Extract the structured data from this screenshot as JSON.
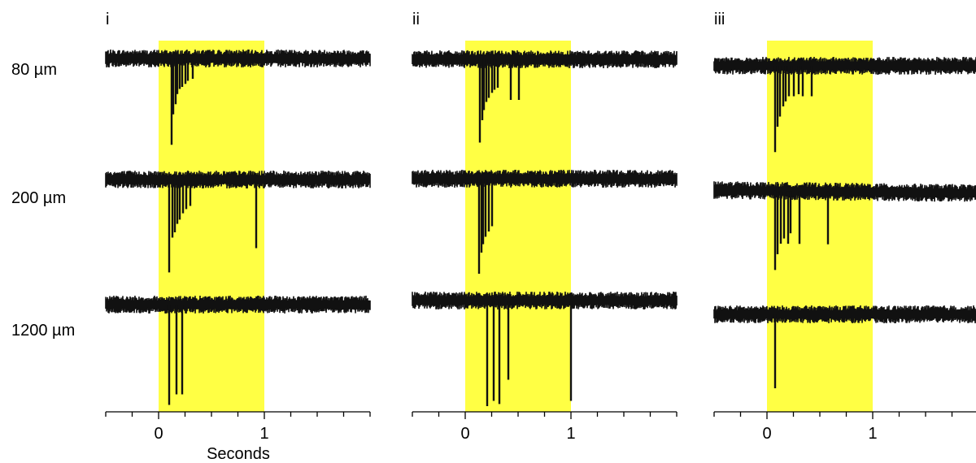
{
  "chart_data": {
    "type": "line",
    "panels": [
      {
        "label": "i",
        "traces": [
          {
            "row": "80 µm",
            "events": [
              [
                0.12,
                0.85
              ],
              [
                0.14,
                0.55
              ],
              [
                0.16,
                0.45
              ],
              [
                0.18,
                0.35
              ],
              [
                0.2,
                0.3
              ],
              [
                0.22,
                0.28
              ],
              [
                0.25,
                0.25
              ],
              [
                0.28,
                0.22
              ],
              [
                0.32,
                0.2
              ]
            ]
          },
          {
            "row": "200 µm",
            "events": [
              [
                0.1,
                0.88
              ],
              [
                0.13,
                0.55
              ],
              [
                0.15,
                0.5
              ],
              [
                0.18,
                0.42
              ],
              [
                0.2,
                0.38
              ],
              [
                0.23,
                0.32
              ],
              [
                0.26,
                0.28
              ],
              [
                0.3,
                0.25
              ],
              [
                0.92,
                0.65
              ]
            ]
          },
          {
            "row": "1200 µm",
            "events": [
              [
                0.1,
                0.95
              ],
              [
                0.17,
                0.85
              ],
              [
                0.22,
                0.85
              ]
            ]
          }
        ]
      },
      {
        "label": "ii",
        "traces": [
          {
            "row": "80 µm",
            "events": [
              [
                0.14,
                0.82
              ],
              [
                0.16,
                0.6
              ],
              [
                0.18,
                0.5
              ],
              [
                0.2,
                0.42
              ],
              [
                0.22,
                0.38
              ],
              [
                0.25,
                0.33
              ],
              [
                0.28,
                0.3
              ],
              [
                0.31,
                0.28
              ],
              [
                0.43,
                0.4
              ],
              [
                0.51,
                0.4
              ]
            ]
          },
          {
            "row": "200 µm",
            "events": [
              [
                0.13,
                0.9
              ],
              [
                0.15,
                0.7
              ],
              [
                0.17,
                0.62
              ],
              [
                0.19,
                0.55
              ],
              [
                0.22,
                0.5
              ],
              [
                0.25,
                0.45
              ]
            ]
          },
          {
            "row": "1200 µm",
            "events": [
              [
                0.21,
                1.0
              ],
              [
                0.27,
                0.95
              ],
              [
                0.32,
                0.98
              ],
              [
                0.41,
                0.75
              ],
              [
                1.0,
                0.95
              ]
            ]
          }
        ]
      },
      {
        "label": "iii",
        "traces": [
          {
            "row": "80 µm",
            "events": [
              [
                0.08,
                0.85
              ],
              [
                0.1,
                0.6
              ],
              [
                0.12,
                0.5
              ],
              [
                0.15,
                0.4
              ],
              [
                0.18,
                0.35
              ],
              [
                0.21,
                0.3
              ],
              [
                0.25,
                0.3
              ],
              [
                0.3,
                0.28
              ],
              [
                0.34,
                0.3
              ],
              [
                0.42,
                0.3
              ]
            ]
          },
          {
            "row": "200 µm",
            "events": [
              [
                0.08,
                0.75
              ],
              [
                0.1,
                0.6
              ],
              [
                0.13,
                0.5
              ],
              [
                0.16,
                0.45
              ],
              [
                0.2,
                0.5
              ],
              [
                0.22,
                0.4
              ],
              [
                0.31,
                0.5
              ],
              [
                0.58,
                0.5
              ]
            ]
          },
          {
            "row": "1200 µm",
            "events": [
              [
                0.08,
                0.7
              ]
            ]
          }
        ]
      }
    ],
    "row_labels": [
      "80 µm",
      "200 µm",
      "1200 µm"
    ],
    "stimulus": {
      "start": 0,
      "end": 1,
      "color": "#ffff44"
    },
    "xlim": [
      -0.5,
      2.0
    ],
    "x_ticks": [
      0,
      1
    ],
    "xlabel": "Seconds",
    "legend": "none",
    "grid": false
  }
}
